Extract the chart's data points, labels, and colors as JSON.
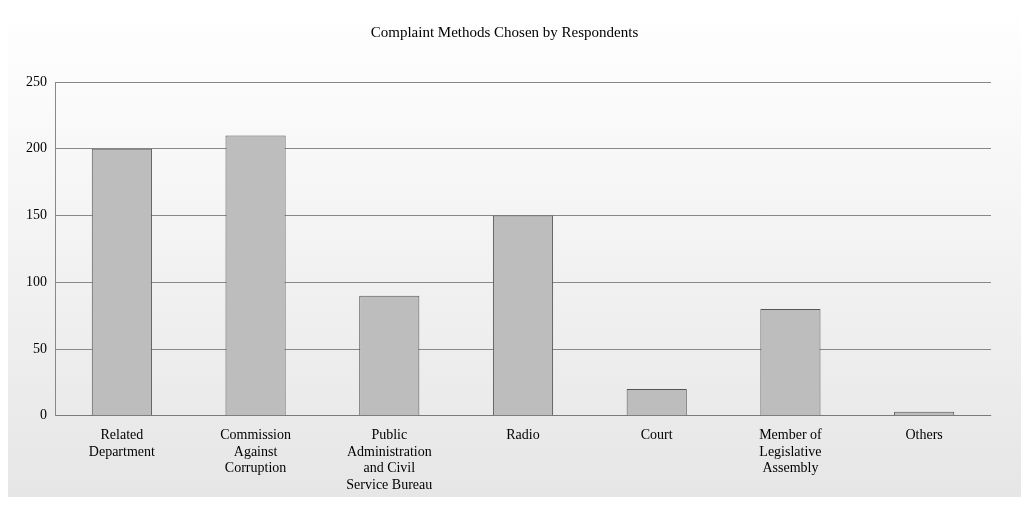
{
  "chart_data": {
    "type": "bar",
    "title": "Complaint Methods Chosen by Respondents",
    "categories": [
      "Related Department",
      "Commission Against Corruption",
      "Public Administration and Civil Service Bureau",
      "Radio",
      "Court",
      "Member of Legislative Assembly",
      "Others"
    ],
    "values": [
      200,
      210,
      90,
      150,
      20,
      80,
      3
    ],
    "color": "#bdbdbd",
    "ylim": [
      0,
      250
    ],
    "yticks": [
      0,
      50,
      100,
      150,
      200,
      250
    ],
    "grid": "y"
  }
}
